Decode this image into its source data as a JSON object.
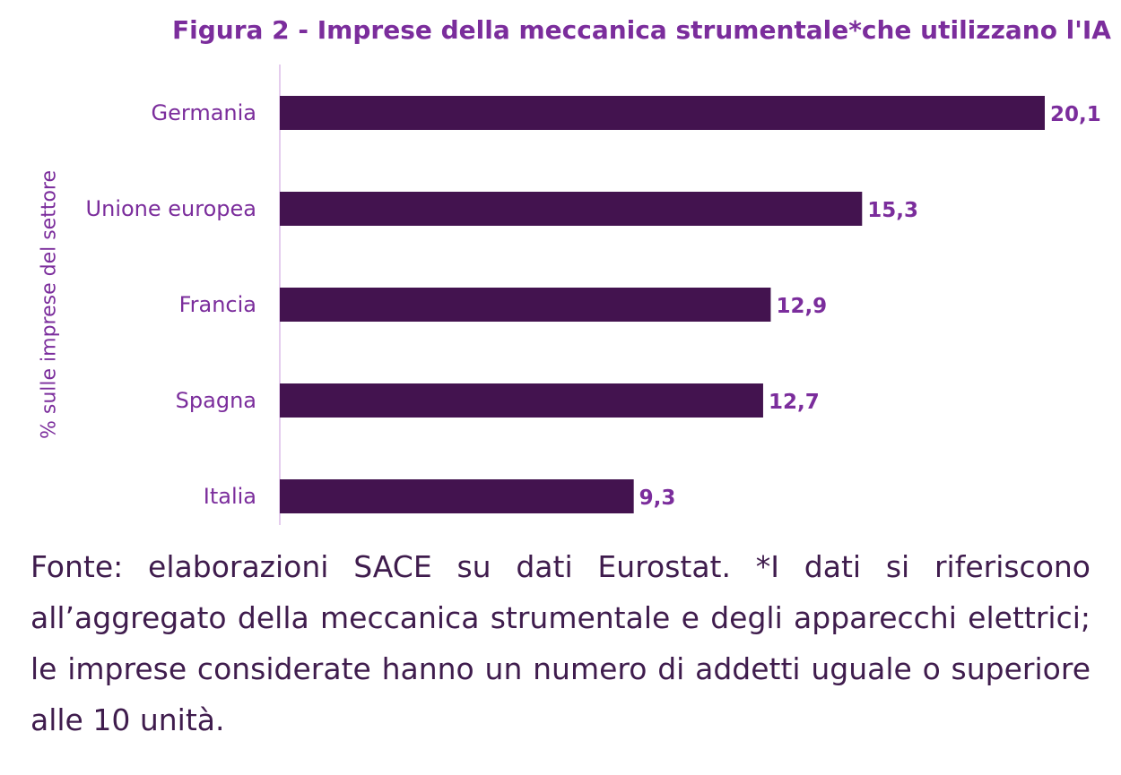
{
  "chart_data": {
    "type": "bar",
    "orientation": "horizontal",
    "title": "Figura 2 - Imprese della meccanica strumentale*che utilizzano l'IA",
    "xlabel": "",
    "ylabel": "% sulle imprese del settore",
    "categories": [
      "Germania",
      "Unione europea",
      "Francia",
      "Spagna",
      "Italia"
    ],
    "values": [
      20.1,
      15.3,
      12.9,
      12.7,
      9.3
    ],
    "value_labels": [
      "20,1",
      "15,3",
      "12,9",
      "12,7",
      "9,3"
    ],
    "xlim": [
      0,
      20.1
    ],
    "grid": false,
    "legend": "none",
    "colors": {
      "bar": "#43134f",
      "title": "#7b2d9c",
      "axis_text": "#7b2d9c",
      "value_label": "#7b2d9c",
      "axis_line": "#e5cdee",
      "note_text": "#3f1c4d"
    }
  },
  "note": "Fonte: elaborazioni SACE su dati Eurostat. *I dati si riferiscono all’aggregato della meccanica strumentale e degli apparecchi elettrici; le imprese considerate hanno un numero di addetti uguale o superiore alle 10 unità."
}
